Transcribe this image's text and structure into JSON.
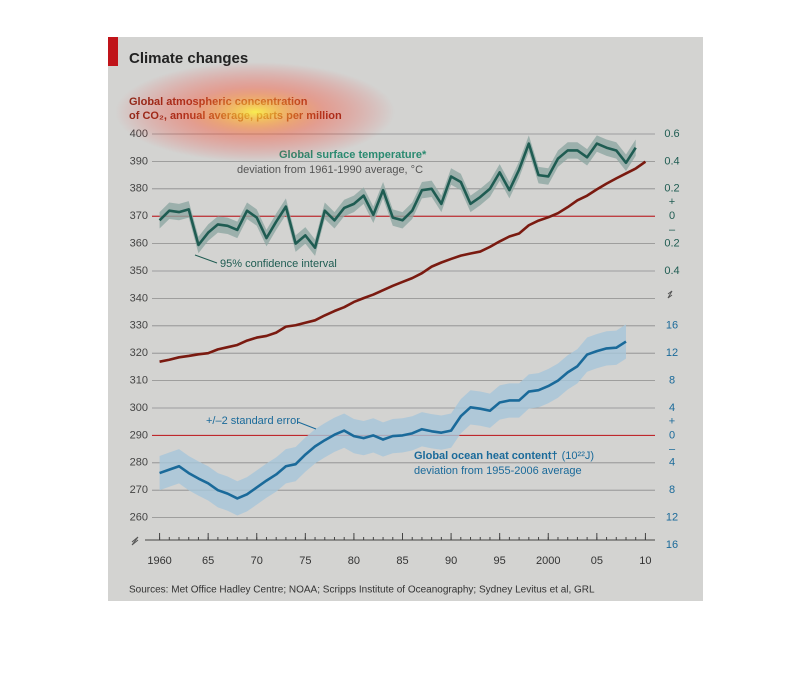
{
  "chart_data": {
    "type": "line",
    "title": "Climate changes",
    "sources": "Sources: Met Office Hadley Centre; NOAA; Scripps Institute of Oceanography; Sydney Levitus et al, GRL",
    "signs": [
      "+",
      "–"
    ],
    "x": [
      1960,
      1961,
      1962,
      1963,
      1964,
      1965,
      1966,
      1967,
      1968,
      1969,
      1970,
      1971,
      1972,
      1973,
      1974,
      1975,
      1976,
      1977,
      1978,
      1979,
      1980,
      1981,
      1982,
      1983,
      1984,
      1985,
      1986,
      1987,
      1988,
      1989,
      1990,
      1991,
      1992,
      1993,
      1994,
      1995,
      1996,
      1997,
      1998,
      1999,
      2000,
      2001,
      2002,
      2003,
      2004,
      2005,
      2006,
      2007,
      2008,
      2009,
      2010
    ],
    "xlim": [
      1958.5,
      2011.5
    ],
    "xticks": [
      1960,
      {
        "value": 1965,
        "label": "65"
      },
      {
        "value": 1970,
        "label": "70"
      },
      {
        "value": 1975,
        "label": "75"
      },
      {
        "value": 1980,
        "label": "80"
      },
      {
        "value": 1985,
        "label": "85"
      },
      {
        "value": 1990,
        "label": "90"
      },
      {
        "value": 1995,
        "label": "95"
      },
      2000,
      {
        "value": 2005,
        "label": "05"
      },
      {
        "value": 2010,
        "label": "10"
      }
    ],
    "ylim": [
      250,
      400
    ],
    "yticks": [
      260,
      270,
      280,
      290,
      300,
      310,
      320,
      330,
      340,
      350,
      360,
      370,
      380,
      390,
      400
    ],
    "y2lim": [
      -2.4,
      0.6
    ],
    "y2ticks": [
      0.6,
      0.4,
      0.2,
      0,
      {
        "value": -0.2,
        "label": "0.2"
      },
      {
        "value": -0.4,
        "label": "0.4"
      }
    ],
    "y3lim": [
      -16,
      44
    ],
    "y3ticks": [
      16,
      12,
      8,
      4,
      0,
      {
        "value": -4,
        "label": "4"
      },
      {
        "value": -8,
        "label": "8"
      },
      {
        "value": -12,
        "label": "12"
      },
      {
        "value": -16,
        "label": "16"
      }
    ],
    "grid": true,
    "series": [
      {
        "name": "Global atmospheric concentration",
        "note": "of CO₂, annual average, parts per million",
        "color": "#7a1a10",
        "axis": "y",
        "values": [
          316.9,
          317.6,
          318.5,
          319.0,
          319.6,
          320.0,
          321.4,
          322.2,
          323.0,
          324.6,
          325.7,
          326.3,
          327.5,
          329.7,
          330.2,
          331.1,
          332.0,
          333.8,
          335.4,
          336.8,
          338.7,
          340.1,
          341.4,
          343.0,
          344.6,
          346.0,
          347.4,
          349.2,
          351.6,
          353.1,
          354.4,
          355.6,
          356.4,
          357.1,
          358.8,
          360.8,
          362.6,
          363.7,
          366.7,
          368.4,
          369.6,
          371.1,
          373.3,
          375.8,
          377.5,
          379.8,
          381.9,
          383.8,
          385.6,
          387.4,
          389.9
        ]
      },
      {
        "name": "Global surface temperature*",
        "note": "deviation from 1961-1990 average, °C",
        "band_label": "95% confidence interval",
        "color": "#1f5c52",
        "band_color": "#8fa8a2",
        "band": 0.06,
        "axis": "y2",
        "values": [
          -0.03,
          0.04,
          0.03,
          0.05,
          -0.21,
          -0.12,
          -0.06,
          -0.07,
          -0.1,
          0.04,
          -0.01,
          -0.16,
          -0.04,
          0.07,
          -0.2,
          -0.14,
          -0.23,
          0.04,
          -0.03,
          0.06,
          0.09,
          0.15,
          0.01,
          0.19,
          -0.01,
          -0.03,
          0.04,
          0.19,
          0.2,
          0.09,
          0.29,
          0.25,
          0.09,
          0.14,
          0.2,
          0.32,
          0.19,
          0.34,
          0.53,
          0.3,
          0.29,
          0.42,
          0.48,
          0.48,
          0.43,
          0.53,
          0.5,
          0.48,
          0.39,
          0.5,
          null
        ]
      },
      {
        "name": "Global ocean heat content†",
        "unit": "(10²²J)",
        "note": "deviation from 1955-2006 average",
        "band_label": "+/–2 standard error",
        "color": "#1a6a9a",
        "band_color": "#a6c6da",
        "band": 2.5,
        "axis": "y3",
        "values": [
          -5.5,
          -5,
          -4.5,
          -5.5,
          -6.3,
          -7,
          -8,
          -8.5,
          -9.2,
          -8.6,
          -7.6,
          -6.6,
          -5.7,
          -4.5,
          -4.2,
          -2.8,
          -1.6,
          -0.7,
          0.1,
          0.7,
          -0.1,
          -0.4,
          0,
          -0.6,
          -0.1,
          0,
          0.3,
          0.9,
          0.6,
          0.4,
          0.7,
          2.8,
          4.1,
          3.9,
          3.6,
          4.8,
          5.1,
          5.1,
          6.4,
          6.6,
          7.2,
          8.0,
          9.2,
          10.1,
          11.8,
          12.3,
          12.7,
          12.8,
          13.7,
          null,
          null
        ]
      }
    ]
  }
}
